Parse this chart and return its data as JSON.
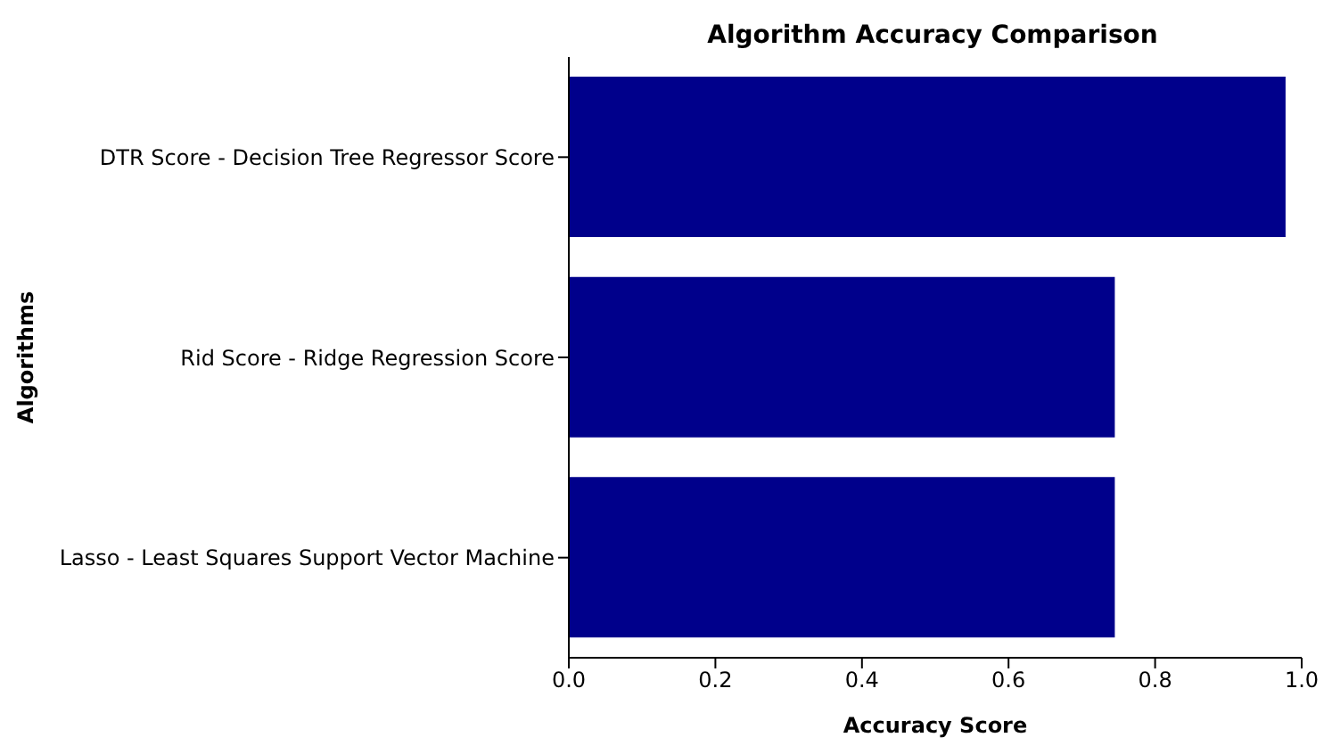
{
  "chart_data": {
    "type": "bar",
    "orientation": "horizontal",
    "title": "Algorithm Accuracy Comparison",
    "xlabel": "Accuracy Score",
    "ylabel": "Algorithms",
    "categories": [
      "DTR Score - Decision Tree Regressor Score",
      "Rid Score - Ridge Regression Score",
      "Lasso - Least Squares Support Vector Machine"
    ],
    "values": [
      0.978,
      0.745,
      0.745
    ],
    "color": "#00008b",
    "xlim": [
      0,
      1.0
    ],
    "xticks": [
      {
        "value": 0,
        "label": "0.0"
      },
      {
        "value": 0.2,
        "label": "0.2"
      },
      {
        "value": 0.4,
        "label": "0.4"
      },
      {
        "value": 0.6,
        "label": "0.6"
      },
      {
        "value": 0.8,
        "label": "0.8"
      },
      {
        "value": 1.0,
        "label": "1.0"
      }
    ],
    "grid": false,
    "legend": false
  }
}
